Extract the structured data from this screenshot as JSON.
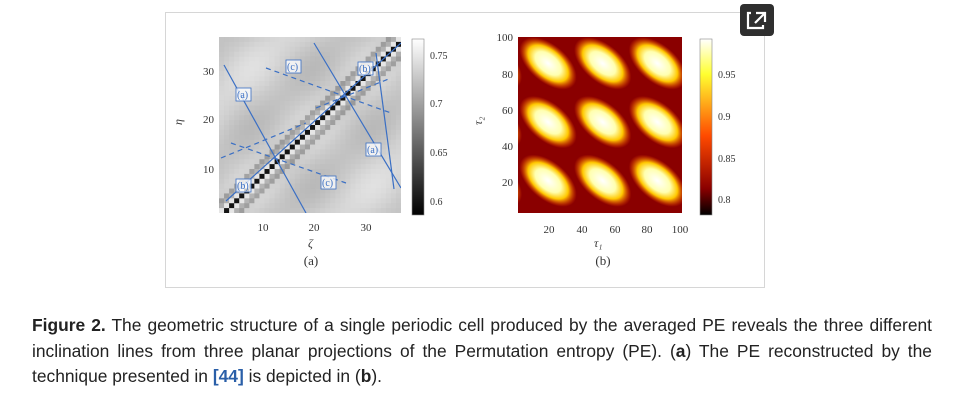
{
  "figure": {
    "panel_a": {
      "sublabel": "(a)",
      "x_axis_label": "ζ",
      "y_axis_label": "η",
      "x_ticks": [
        "10",
        "20",
        "30"
      ],
      "y_ticks": [
        "10",
        "20",
        "30"
      ],
      "colorbar_ticks": [
        "0.75",
        "0.7",
        "0.65",
        "0.6"
      ],
      "annotations": [
        "(c)",
        "(b)",
        "(a)",
        "(a)",
        "(b)",
        "(c)"
      ]
    },
    "panel_b": {
      "sublabel": "(b)",
      "x_axis_label": "τ₁",
      "y_axis_label": "τ₂",
      "x_ticks": [
        "20",
        "40",
        "60",
        "80",
        "100"
      ],
      "y_ticks": [
        "20",
        "40",
        "60",
        "80",
        "100"
      ],
      "colorbar_ticks": [
        "0.95",
        "0.9",
        "0.85",
        "0.8"
      ]
    }
  },
  "caption": {
    "label": "Figure 2.",
    "text_1": " The geometric structure of a single periodic cell produced by the averaged PE reveals the three different inclination lines from three planar projections of the Permutation entropy (PE). (",
    "a": "a",
    "text_2": ") The PE reconstructed by the technique presented in ",
    "ref": "[44]",
    "text_3": " is depicted in (",
    "b": "b",
    "text_4": ")."
  },
  "colors": {
    "annotation_blue": "#3a6fc4",
    "caption_text": "#222222",
    "ref_link": "#2a5fa8"
  },
  "icons": {
    "expand": "external-expand-icon"
  }
}
